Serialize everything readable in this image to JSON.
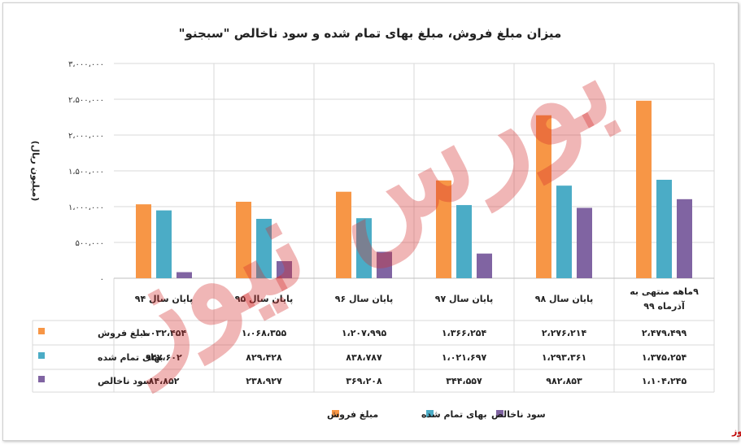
{
  "chart_data": {
    "type": "bar",
    "title": "میزان مبلغ فروش، مبلغ بهای تمام شده و سود ناخالص \"سبجنو\"",
    "ylabel": "(میلیون ریال)",
    "ylim": [
      0,
      3000000
    ],
    "yticks": [
      "۳،۰۰۰،۰۰۰",
      "۲،۵۰۰،۰۰۰",
      "۲،۰۰۰،۰۰۰",
      "۱،۵۰۰،۰۰۰",
      "۱،۰۰۰،۰۰۰",
      "۵۰۰،۰۰۰",
      "۰"
    ],
    "categories": [
      "پایان سال ۹۴",
      "پایان سال ۹۵",
      "پایان سال ۹۶",
      "پایان سال ۹۷",
      "پایان سال ۹۸",
      "۹ماهه منتهی به آذرماه ۹۹"
    ],
    "category_lines": [
      [
        "پایان سال ۹۴"
      ],
      [
        "پایان سال ۹۵"
      ],
      [
        "پایان سال ۹۶"
      ],
      [
        "پایان سال ۹۷"
      ],
      [
        "پایان سال ۹۸"
      ],
      [
        "۹ماهه منتهی به",
        "آذرماه ۹۹"
      ]
    ],
    "series": [
      {
        "name": "مبلغ فروش",
        "color": "#f79646",
        "values": [
          1032454,
          1068355,
          1207995,
          1366254,
          2276214,
          2479499
        ],
        "labels": [
          "۱،۰۳۲،۴۵۴",
          "۱،۰۶۸،۳۵۵",
          "۱،۲۰۷،۹۹۵",
          "۱،۳۶۶،۲۵۴",
          "۲،۲۷۶،۲۱۴",
          "۲،۴۷۹،۴۹۹"
        ]
      },
      {
        "name": "بهای تمام شده",
        "color": "#4bacc6",
        "values": [
          947602,
          829428,
          838787,
          1021697,
          1293361,
          1375254
        ],
        "labels": [
          "۹۴۷،۶۰۲",
          "۸۲۹،۴۲۸",
          "۸۳۸،۷۸۷",
          "۱،۰۲۱،۶۹۷",
          "۱،۲۹۳،۳۶۱",
          "۱،۳۷۵،۲۵۴"
        ]
      },
      {
        "name": "سود ناخالص",
        "color": "#8064a2",
        "values": [
          84852,
          238927,
          369208,
          344557,
          982853,
          1104245
        ],
        "labels": [
          "۸۴،۸۵۲",
          "۲۳۸،۹۲۷",
          "۳۶۹،۲۰۸",
          "۳۴۴،۵۵۷",
          "۹۸۲،۸۵۳",
          "۱،۱۰۴،۲۴۵"
        ]
      }
    ],
    "grid": true,
    "legend": "bottom-center",
    "data_table": true
  },
  "watermark": "بورس نیوز",
  "footer": {
    "logo_text": "بورس نیوز"
  }
}
